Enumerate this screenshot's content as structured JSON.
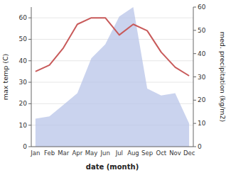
{
  "chart_data": {
    "type": "line",
    "xlabel": "date (month)",
    "ylabel": "max temp (C)",
    "y2label": "med. precipitation (kg/m2)",
    "categories": [
      "Jan",
      "Feb",
      "Mar",
      "Apr",
      "May",
      "Jun",
      "Jul",
      "Aug",
      "Sep",
      "Oct",
      "Nov",
      "Dec"
    ],
    "series": [
      {
        "type": "area",
        "axis": "y2",
        "color": "#b8c4e8",
        "values": [
          12,
          13,
          18,
          23,
          38,
          44,
          56,
          60,
          25,
          22,
          23,
          10
        ]
      },
      {
        "type": "line",
        "color": "#c85a5a",
        "values": [
          35,
          38,
          46,
          57,
          60,
          60,
          52,
          57,
          54,
          44,
          37,
          33
        ]
      }
    ],
    "ylim": [
      0,
      65
    ],
    "yticks": [
      0,
      10,
      20,
      30,
      40,
      50,
      60
    ],
    "y2lim": [
      0,
      60
    ],
    "y2ticks": [
      0,
      10,
      20,
      30,
      40,
      50,
      60
    ],
    "grid": true
  }
}
